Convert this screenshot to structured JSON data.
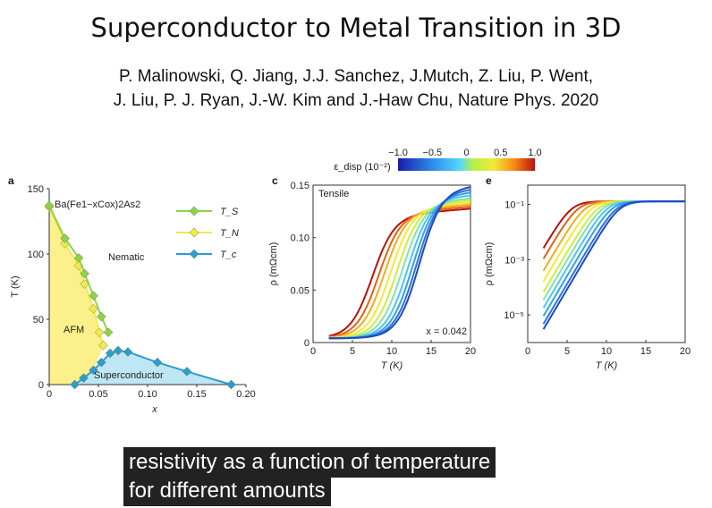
{
  "slide": {
    "title": "Superconductor to Metal Transition in 3D",
    "authors_line1": "P. Malinowski, Q. Jiang, J.J. Sanchez, J.Mutch, Z. Liu, P. Went,",
    "authors_line2": "J. Liu, P. J. Ryan, J.-W. Kim and J.-Haw Chu, Nature Phys. 2020"
  },
  "captions": {
    "line1": "resistivity as a function of temperature",
    "line2": "for different amounts"
  },
  "colors": {
    "ts_green": "#8fd14f",
    "tn_yellow": "#f2e94e",
    "tc_blue": "#2f9bd6",
    "afm_fill": "#fbf08a",
    "sc_fill": "#bfe6f4",
    "nematic_text": "#6cc04a",
    "caption_bg": "#222222"
  },
  "chart_data": [
    {
      "panel": "a",
      "type": "line",
      "title": "Ba(Fe1−xCox)2As2",
      "xlabel": "x",
      "ylabel": "T (K)",
      "xlim": [
        0,
        0.2
      ],
      "ylim": [
        0,
        150
      ],
      "xticks": [
        "0",
        "0.05",
        "0.10",
        "0.15",
        "0.20"
      ],
      "yticks": [
        "0",
        "50",
        "100",
        "150"
      ],
      "legend": [
        "T_S",
        "T_N",
        "T_c"
      ],
      "annotations": [
        "Nematic",
        "AFM",
        "Superconductor"
      ],
      "series": [
        {
          "name": "T_S",
          "x": [
            0,
            0.016,
            0.03,
            0.036,
            0.045,
            0.053,
            0.06
          ],
          "y": [
            137,
            112,
            97,
            85,
            68,
            52,
            40
          ]
        },
        {
          "name": "T_N",
          "x": [
            0,
            0.016,
            0.03,
            0.036,
            0.045,
            0.051,
            0.055
          ],
          "y": [
            136,
            108,
            91,
            77,
            58,
            40,
            30
          ]
        },
        {
          "name": "T_c",
          "x": [
            0.026,
            0.035,
            0.045,
            0.053,
            0.062,
            0.07,
            0.08,
            0.11,
            0.14,
            0.185
          ],
          "y": [
            0,
            5,
            11,
            17,
            24,
            26,
            25,
            17,
            10,
            0
          ]
        }
      ]
    },
    {
      "panel": "c",
      "type": "line",
      "xlabel": "T (K)",
      "ylabel": "ρ (mΩcm)",
      "xlim": [
        0,
        20
      ],
      "ylim": [
        0,
        0.15
      ],
      "xticks": [
        "0",
        "5",
        "10",
        "15",
        "20"
      ],
      "yticks": [
        "0",
        "0.05",
        "0.10",
        "0.15"
      ],
      "annotations": [
        "Tensile",
        "x = 0.042"
      ],
      "colorbar": {
        "label": "ε_disp (10⁻²)",
        "ticks": [
          "−1.0",
          "−0.5",
          "0",
          "0.5",
          "1.0"
        ]
      },
      "series": [
        {
          "strain": 1.0,
          "tc": 7.5,
          "rho_n": 0.12
        },
        {
          "strain": 0.8,
          "tc": 8.3,
          "rho_n": 0.122
        },
        {
          "strain": 0.6,
          "tc": 9.0,
          "rho_n": 0.124
        },
        {
          "strain": 0.4,
          "tc": 9.8,
          "rho_n": 0.126
        },
        {
          "strain": 0.2,
          "tc": 10.6,
          "rho_n": 0.128
        },
        {
          "strain": 0.0,
          "tc": 11.3,
          "rho_n": 0.13
        },
        {
          "strain": -0.2,
          "tc": 12.0,
          "rho_n": 0.133
        },
        {
          "strain": -0.4,
          "tc": 12.6,
          "rho_n": 0.136
        },
        {
          "strain": -0.6,
          "tc": 13.1,
          "rho_n": 0.139
        },
        {
          "strain": -0.8,
          "tc": 13.5,
          "rho_n": 0.142
        }
      ]
    },
    {
      "panel": "e",
      "type": "line",
      "xlabel": "T (K)",
      "ylabel": "ρ (mΩcm)",
      "xlim": [
        0,
        20
      ],
      "yscale": "log",
      "ylim": [
        1e-06,
        0.5
      ],
      "xticks": [
        "0",
        "5",
        "10",
        "15",
        "20"
      ],
      "yticks": [
        "10⁻¹",
        "10⁻³",
        "10⁻⁵"
      ],
      "series": [
        {
          "strain": 1.0,
          "tc": 5.5
        },
        {
          "strain": 0.8,
          "tc": 6.3
        },
        {
          "strain": 0.6,
          "tc": 7.2
        },
        {
          "strain": 0.4,
          "tc": 8.0
        },
        {
          "strain": 0.2,
          "tc": 8.8
        },
        {
          "strain": 0.0,
          "tc": 9.4
        },
        {
          "strain": -0.2,
          "tc": 10.0
        },
        {
          "strain": -0.4,
          "tc": 10.6
        },
        {
          "strain": -0.6,
          "tc": 11.2
        },
        {
          "strain": -0.8,
          "tc": 11.6
        }
      ]
    }
  ]
}
